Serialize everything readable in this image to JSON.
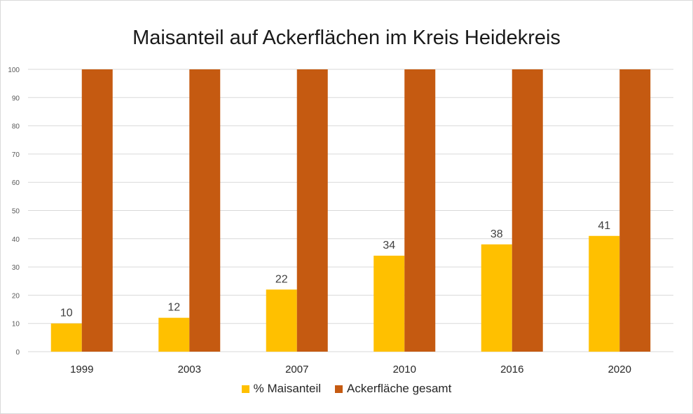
{
  "chart_data": {
    "type": "bar",
    "title": "Maisanteil auf Ackerflächen im Kreis Heidekreis",
    "categories": [
      "1999",
      "2003",
      "2007",
      "2010",
      "2016",
      "2020"
    ],
    "series": [
      {
        "name": "% Maisanteil",
        "color": "#ffc000",
        "values": [
          10,
          12,
          22,
          34,
          38,
          41
        ],
        "data_labels": [
          "10",
          "12",
          "22",
          "34",
          "38",
          "41"
        ]
      },
      {
        "name": "Ackerfläche gesamt",
        "color": "#c55a11",
        "values": [
          100,
          100,
          100,
          100,
          100,
          100
        ]
      }
    ],
    "ylim": [
      0,
      100
    ],
    "yticks": [
      0,
      10,
      20,
      30,
      40,
      50,
      60,
      70,
      80,
      90,
      100
    ],
    "grid": true,
    "legend_position": "bottom"
  }
}
